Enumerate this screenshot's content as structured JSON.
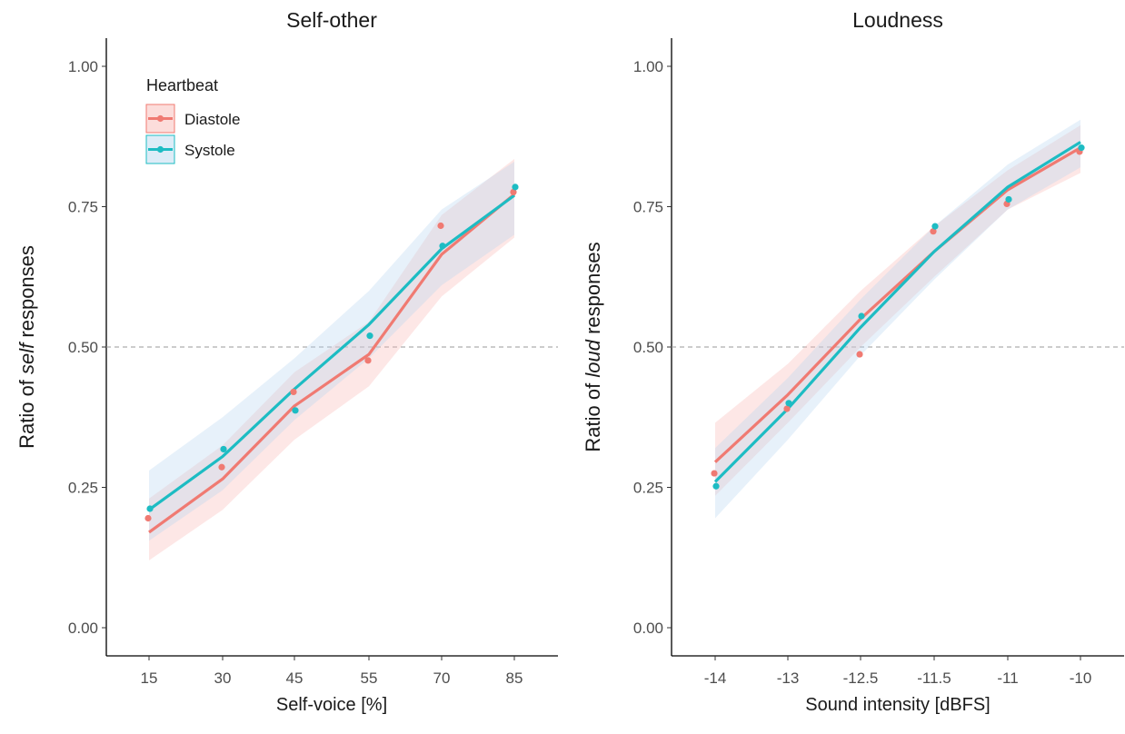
{
  "chart_data": [
    {
      "type": "line",
      "title": "Self-other",
      "xlabel": "Self-voice [%]",
      "ylabel_parts": [
        "Ratio of ",
        "self",
        " responses"
      ],
      "x_ticks": [
        "15",
        "30",
        "45",
        "55",
        "70",
        "85"
      ],
      "x_positions": [
        15,
        30,
        45,
        55,
        70,
        85
      ],
      "y_ticks": [
        "0.00",
        "0.25",
        "0.50",
        "0.75",
        "1.00"
      ],
      "ylim": [
        0,
        1
      ],
      "reference_line": 0.5,
      "legend": {
        "title": "Heartbeat",
        "placement": "top-left",
        "entries": [
          "Diastole",
          "Systole"
        ]
      },
      "series": [
        {
          "name": "Diastole",
          "color": "#F07A72",
          "points": [
            0.195,
            0.286,
            0.42,
            0.476,
            0.716,
            0.776
          ],
          "fit": [
            0.17,
            0.265,
            0.395,
            0.487,
            0.665,
            0.772
          ],
          "band_low": [
            0.12,
            0.21,
            0.335,
            0.43,
            0.59,
            0.695
          ],
          "band_high": [
            0.23,
            0.325,
            0.455,
            0.545,
            0.735,
            0.835
          ]
        },
        {
          "name": "Systole",
          "color": "#1DBCC3",
          "points": [
            0.212,
            0.318,
            0.387,
            0.52,
            0.68,
            0.785
          ],
          "fit": [
            0.21,
            0.305,
            0.425,
            0.54,
            0.675,
            0.77
          ],
          "band_low": [
            0.155,
            0.245,
            0.37,
            0.48,
            0.61,
            0.7
          ],
          "band_high": [
            0.28,
            0.375,
            0.48,
            0.6,
            0.745,
            0.83
          ]
        }
      ]
    },
    {
      "type": "line",
      "title": "Loudness",
      "xlabel": "Sound intensity [dBFS]",
      "ylabel_parts": [
        "Ratio of ",
        "loud",
        " responses"
      ],
      "x_ticks": [
        "-14",
        "-13",
        "-12.5",
        "-11.5",
        "-11",
        "-10"
      ],
      "x_positions": [
        -14,
        -13,
        -12.5,
        -11.5,
        -11,
        -10
      ],
      "y_ticks": [
        "0.00",
        "0.25",
        "0.50",
        "0.75",
        "1.00"
      ],
      "ylim": [
        0,
        1
      ],
      "reference_line": 0.5,
      "series": [
        {
          "name": "Diastole",
          "color": "#F07A72",
          "points": [
            0.275,
            0.39,
            0.487,
            0.706,
            0.755,
            0.848
          ],
          "fit": [
            0.295,
            0.415,
            0.55,
            0.67,
            0.78,
            0.855
          ],
          "band_low": [
            0.235,
            0.365,
            0.5,
            0.625,
            0.745,
            0.81
          ],
          "band_high": [
            0.365,
            0.47,
            0.6,
            0.715,
            0.815,
            0.895
          ]
        },
        {
          "name": "Systole",
          "color": "#1DBCC3",
          "points": [
            0.252,
            0.4,
            0.555,
            0.715,
            0.763,
            0.855
          ],
          "fit": [
            0.26,
            0.39,
            0.535,
            0.67,
            0.785,
            0.865
          ],
          "band_low": [
            0.195,
            0.335,
            0.485,
            0.62,
            0.745,
            0.82
          ],
          "band_high": [
            0.32,
            0.445,
            0.585,
            0.715,
            0.825,
            0.905
          ]
        }
      ]
    }
  ]
}
